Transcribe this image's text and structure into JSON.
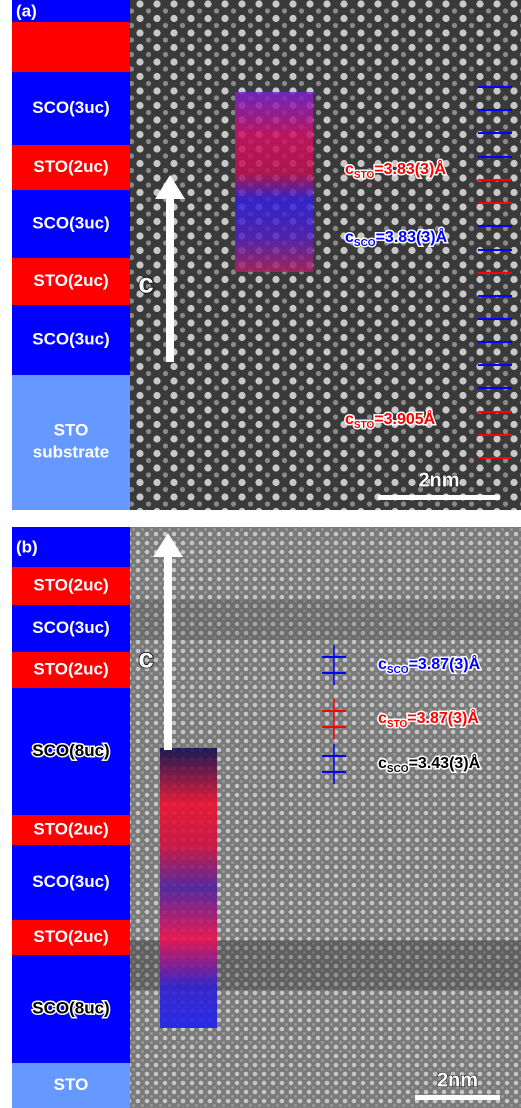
{
  "panels": [
    {
      "label": "(a)",
      "axis_label": "c",
      "scale_bar": "2nm",
      "layers": [
        {
          "fill": "#0000ff"
        },
        {
          "fill": "#ff0000"
        },
        {
          "text": "SCO(3uc)",
          "fill": "#0000ff"
        },
        {
          "text": "STO(2uc)",
          "fill": "#ff0000"
        },
        {
          "text": "SCO(3uc)",
          "fill": "#0000ff"
        },
        {
          "text": "STO(2uc)",
          "fill": "#ff0000"
        },
        {
          "text": "SCO(3uc)",
          "fill": "#0000ff"
        },
        {
          "text": "STO substrate",
          "fill": "#6699ff"
        }
      ],
      "annotations": [
        {
          "symbol": "c",
          "subscript": "STO",
          "value": "=3.83(3)Å",
          "color": "#ff0000"
        },
        {
          "symbol": "c",
          "subscript": "SCO",
          "value": "=3.83(3)Å",
          "color": "#0000ff"
        },
        {
          "symbol": "c",
          "subscript": "STO",
          "value": "=3.905Å",
          "color": "#ff0000"
        }
      ]
    },
    {
      "label": "(b)",
      "axis_label": "c",
      "scale_bar": "2nm",
      "layers": [
        {
          "fill": "#0000ff"
        },
        {
          "text": "STO(2uc)",
          "fill": "#ff0000"
        },
        {
          "text": "SCO(3uc)",
          "fill": "#0000ff"
        },
        {
          "text": "STO(2uc)",
          "fill": "#ff0000"
        },
        {
          "text": "SCO(8uc)",
          "fill": "#0000ff"
        },
        {
          "text": "STO(2uc)",
          "fill": "#ff0000"
        },
        {
          "text": "SCO(3uc)",
          "fill": "#0000ff"
        },
        {
          "text": "STO(2uc)",
          "fill": "#ff0000"
        },
        {
          "text": "SCO(8uc)",
          "fill": "#0000ff"
        },
        {
          "text": "STO",
          "fill": "#6699ff"
        }
      ],
      "annotations": [
        {
          "symbol": "c",
          "subscript": "SCO",
          "value": "=3.87(3)Å",
          "color": "#0000ff"
        },
        {
          "symbol": "c",
          "subscript": "STO",
          "value": "=3.87(3)Å",
          "color": "#ff0000"
        },
        {
          "symbol": "c",
          "subscript": "SCO",
          "value": "=3.43(3)Å",
          "color": "#000000"
        }
      ]
    }
  ]
}
